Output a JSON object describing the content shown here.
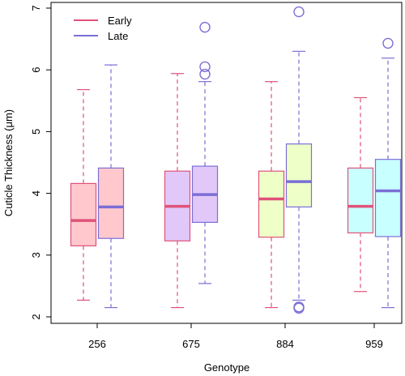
{
  "chart_data": {
    "type": "boxplot",
    "xlabel": "Genotype",
    "ylabel": "Cuticle Thickness (μm)",
    "ylim": [
      2,
      7
    ],
    "yticks": [
      2,
      3,
      4,
      5,
      6,
      7
    ],
    "categories": [
      "256",
      "675",
      "884",
      "959"
    ],
    "grid": false,
    "legend": {
      "position": "top-left",
      "entries": [
        {
          "label": "Early",
          "color": "#e0527a"
        },
        {
          "label": "Late",
          "color": "#7b6fd6"
        }
      ]
    },
    "series": [
      {
        "name": "Early",
        "line_color": "#e0527a",
        "boxes": [
          {
            "category": "256",
            "fill": "#ffc8cc",
            "whisker_low": 2.27,
            "q1": 3.15,
            "median": 3.56,
            "q3": 4.16,
            "whisker_high": 5.68,
            "outliers": []
          },
          {
            "category": "675",
            "fill": "#e2c8f9",
            "whisker_low": 2.15,
            "q1": 3.23,
            "median": 3.79,
            "q3": 4.36,
            "whisker_high": 5.94,
            "outliers": []
          },
          {
            "category": "884",
            "fill": "#eeffc8",
            "whisker_low": 2.15,
            "q1": 3.29,
            "median": 3.91,
            "q3": 4.36,
            "whisker_high": 5.81,
            "outliers": []
          },
          {
            "category": "959",
            "fill": "#c8ffff",
            "whisker_low": 2.41,
            "q1": 3.36,
            "median": 3.79,
            "q3": 4.41,
            "whisker_high": 5.55,
            "outliers": []
          }
        ]
      },
      {
        "name": "Late",
        "line_color": "#7b6fd6",
        "boxes": [
          {
            "category": "256",
            "fill": "#ffc8cc",
            "whisker_low": 2.15,
            "q1": 3.27,
            "median": 3.78,
            "q3": 4.41,
            "whisker_high": 6.08,
            "outliers": []
          },
          {
            "category": "675",
            "fill": "#e2c8f9",
            "whisker_low": 2.54,
            "q1": 3.53,
            "median": 3.98,
            "q3": 4.44,
            "whisker_high": 5.81,
            "outliers": [
              5.93,
              6.05,
              6.69
            ]
          },
          {
            "category": "884",
            "fill": "#eeffc8",
            "whisker_low": 2.27,
            "q1": 3.78,
            "median": 4.19,
            "q3": 4.8,
            "whisker_high": 6.3,
            "outliers": [
              2.14,
              2.16,
              6.94
            ]
          },
          {
            "category": "959",
            "fill": "#c8ffff",
            "whisker_low": 2.15,
            "q1": 3.3,
            "median": 4.04,
            "q3": 4.55,
            "whisker_high": 6.19,
            "outliers": [
              6.43
            ]
          }
        ]
      }
    ]
  }
}
